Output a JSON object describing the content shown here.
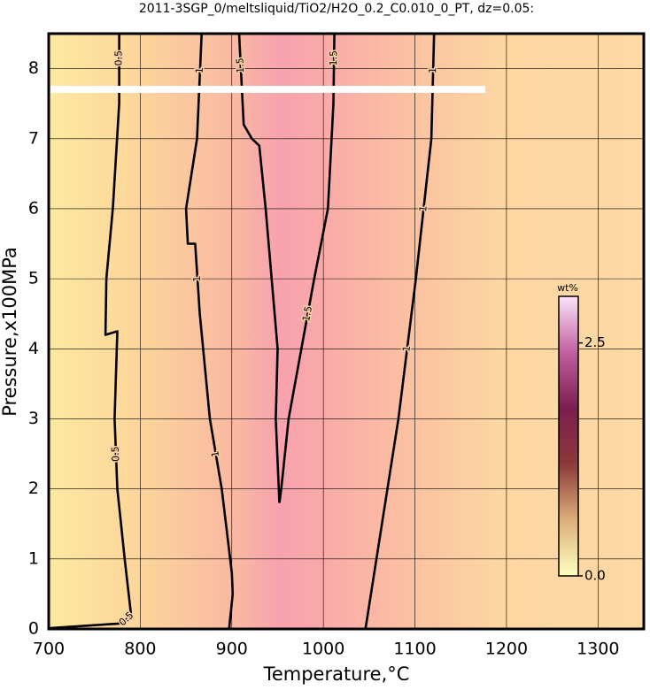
{
  "chart_data": {
    "type": "contour",
    "title": "2011-3SGP_0/meltsliquid/TiO2/H2O_0.2_C0.010_0_PT, dz=0.05:",
    "xlabel": "Temperature,°C",
    "ylabel": "Pressure,x100MPa",
    "xlim": [
      700,
      1350
    ],
    "ylim": [
      0,
      8.5
    ],
    "xticks": [
      700,
      800,
      900,
      1000,
      1100,
      1200,
      1300
    ],
    "yticks": [
      0,
      1,
      2,
      3,
      4,
      5,
      6,
      7,
      8
    ],
    "grid": true,
    "color": "#000000",
    "series": [
      {
        "name": "0.5",
        "x": [
          777,
          777,
          770,
          763,
          762,
          775,
          772,
          775,
          783,
          790,
          780,
          710,
          700
        ],
        "values": [
          8.5,
          7.5,
          6,
          5,
          4.2,
          4.25,
          3,
          2,
          1,
          0.2,
          0.08,
          0.02,
          0.01
        ]
      },
      {
        "name": "1",
        "x": [
          867,
          862,
          850,
          852,
          860,
          865,
          876,
          889,
          900,
          901,
          897
        ],
        "values": [
          8.5,
          7,
          6,
          5.5,
          5.5,
          4.5,
          3,
          2,
          0.8,
          0.5,
          0
        ]
      },
      {
        "name": "1.5",
        "x": [
          908,
          913,
          922,
          930,
          937,
          950,
          948,
          952
        ],
        "values": [
          8.5,
          7.2,
          7.0,
          6.9,
          6,
          4,
          3,
          1.8
        ]
      },
      {
        "name": "1.5",
        "x": [
          1012,
          1011,
          1005,
          990,
          976,
          962,
          954,
          952
        ],
        "values": [
          8.5,
          7.5,
          6,
          5,
          4,
          3,
          2,
          1.8
        ]
      },
      {
        "name": "1",
        "x": [
          1121,
          1118,
          1101,
          1082,
          1058,
          1046
        ],
        "values": [
          8.5,
          7,
          5,
          3,
          1,
          0
        ]
      }
    ],
    "colorbar": {
      "label": "wt%",
      "lim": [
        0,
        3
      ],
      "ticks": [
        {
          "value": 0,
          "label": "0.0"
        },
        2.5
      ],
      "colors": [
        "#ffffc0",
        "#dcae78",
        "#8b3a3a",
        "#7a1f4f",
        "#c060a0",
        "#fbe4f7"
      ]
    }
  }
}
